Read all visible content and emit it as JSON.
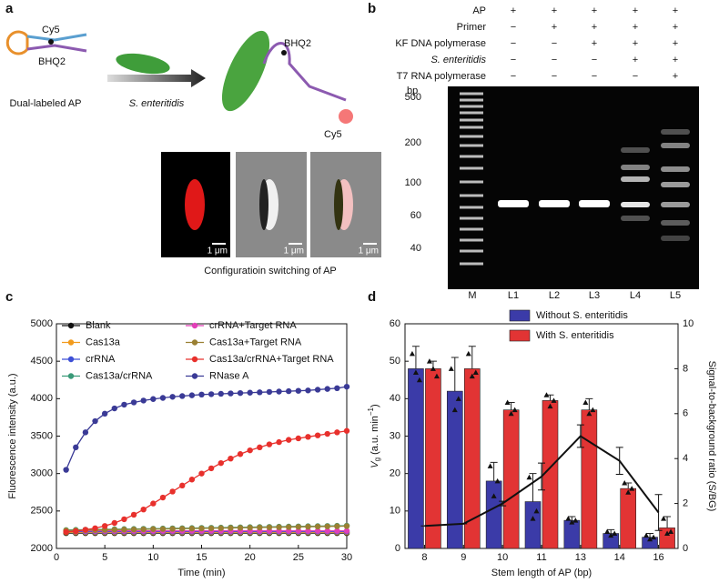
{
  "panel_a": {
    "label": "a",
    "cy5_left": "Cy5",
    "bhq2_left": "BHQ2",
    "probe_caption": "Dual-labeled AP",
    "arrow_label": "S. enteritidis",
    "bhq2_right": "BHQ2",
    "cy5_right": "Cy5",
    "scale_bars": [
      "1 μm",
      "1 μm",
      "1 μm"
    ],
    "caption": "Configuratioin switching of AP"
  },
  "panel_b": {
    "label": "b",
    "rows": [
      {
        "label": "AP",
        "signs": [
          "+",
          "+",
          "+",
          "+",
          "+"
        ]
      },
      {
        "label": "Primer",
        "signs": [
          "−",
          "+",
          "+",
          "+",
          "+"
        ]
      },
      {
        "label": "KF DNA polymerase",
        "signs": [
          "−",
          "−",
          "+",
          "+",
          "+"
        ]
      },
      {
        "label": "S. enteritidis",
        "signs": [
          "−",
          "−",
          "−",
          "+",
          "+"
        ]
      },
      {
        "label": "T7 RNA polymerase",
        "signs": [
          "−",
          "−",
          "−",
          "−",
          "+"
        ]
      }
    ],
    "unit": "bp",
    "ladder": [
      500,
      200,
      100,
      60,
      40
    ],
    "lanes": [
      "M",
      "L1",
      "L2",
      "L3",
      "L4",
      "L5"
    ]
  },
  "chart_data": [
    {
      "type": "line",
      "panel_label": "c",
      "xlabel": "Time (min)",
      "ylabel": "Fluorescence intensity (a.u.)",
      "x": [
        1,
        2,
        3,
        4,
        5,
        6,
        7,
        8,
        9,
        10,
        11,
        12,
        13,
        14,
        15,
        16,
        17,
        18,
        19,
        20,
        21,
        22,
        23,
        24,
        25,
        26,
        27,
        28,
        29,
        30
      ],
      "xlim": [
        0,
        30
      ],
      "xticks": [
        0,
        5,
        10,
        15,
        20,
        25,
        30
      ],
      "ylim": [
        2000,
        5000
      ],
      "yticks": [
        2000,
        2500,
        3000,
        3500,
        4000,
        4500,
        5000
      ],
      "series": [
        {
          "name": "Blank",
          "color": "#111111",
          "values": [
            2205,
            2205,
            2205,
            2205,
            2205,
            2205,
            2205,
            2205,
            2205,
            2205,
            2205,
            2205,
            2205,
            2205,
            2205,
            2205,
            2205,
            2205,
            2205,
            2205,
            2205,
            2205,
            2205,
            2205,
            2205,
            2205,
            2205,
            2205,
            2205,
            2205
          ]
        },
        {
          "name": "Cas13a",
          "color": "#f29b1d",
          "values": [
            2215,
            2215,
            2215,
            2215,
            2215,
            2215,
            2215,
            2215,
            2215,
            2215,
            2215,
            2215,
            2215,
            2215,
            2215,
            2215,
            2215,
            2215,
            2215,
            2215,
            2215,
            2215,
            2215,
            2215,
            2215,
            2215,
            2215,
            2215,
            2215,
            2215
          ]
        },
        {
          "name": "crRNA",
          "color": "#3d4fd6",
          "values": [
            2225,
            2225,
            2225,
            2225,
            2225,
            2225,
            2225,
            2225,
            2225,
            2225,
            2225,
            2225,
            2225,
            2225,
            2225,
            2225,
            2225,
            2225,
            2225,
            2225,
            2225,
            2225,
            2225,
            2225,
            2225,
            2225,
            2225,
            2225,
            2225,
            2225
          ]
        },
        {
          "name": "Cas13a/crRNA",
          "color": "#3a9a78",
          "values": [
            2245,
            2248,
            2250,
            2252,
            2254,
            2256,
            2258,
            2260,
            2262,
            2264,
            2266,
            2268,
            2270,
            2272,
            2274,
            2276,
            2278,
            2280,
            2282,
            2284,
            2286,
            2288,
            2290,
            2292,
            2294,
            2296,
            2298,
            2300,
            2302,
            2304
          ]
        },
        {
          "name": "crRNA+Target RNA",
          "color": "#e23fb8",
          "values": [
            2235,
            2235,
            2235,
            2235,
            2235,
            2235,
            2235,
            2235,
            2235,
            2235,
            2235,
            2235,
            2235,
            2235,
            2235,
            2235,
            2235,
            2235,
            2235,
            2235,
            2235,
            2235,
            2235,
            2235,
            2235,
            2235,
            2235,
            2235,
            2235,
            2235
          ]
        },
        {
          "name": "Cas13a+Target RNA",
          "color": "#9a8033",
          "values": [
            2240,
            2242,
            2244,
            2246,
            2248,
            2250,
            2252,
            2254,
            2256,
            2258,
            2260,
            2262,
            2264,
            2266,
            2268,
            2270,
            2272,
            2274,
            2276,
            2278,
            2280,
            2282,
            2284,
            2286,
            2288,
            2290,
            2292,
            2294,
            2296,
            2298
          ]
        },
        {
          "name": "Cas13a/crRNA+Target RNA",
          "color": "#e8302c",
          "values": [
            2220,
            2230,
            2250,
            2270,
            2300,
            2340,
            2390,
            2450,
            2520,
            2600,
            2680,
            2760,
            2840,
            2920,
            3000,
            3070,
            3140,
            3200,
            3260,
            3310,
            3350,
            3390,
            3420,
            3450,
            3470,
            3490,
            3510,
            3530,
            3550,
            3570
          ]
        },
        {
          "name": "RNase A",
          "color": "#3a3a96",
          "values": [
            3050,
            3350,
            3550,
            3700,
            3800,
            3870,
            3920,
            3950,
            3975,
            3995,
            4010,
            4025,
            4035,
            4045,
            4055,
            4060,
            4065,
            4070,
            4075,
            4080,
            4085,
            4090,
            4095,
            4100,
            4105,
            4110,
            4120,
            4130,
            4140,
            4160
          ]
        }
      ]
    },
    {
      "type": "bar",
      "panel_label": "d",
      "xlabel": "Stem length of AP (bp)",
      "ylabel_parts": [
        "V",
        "g",
        "(a.u. min",
        "−1",
        ")"
      ],
      "y2label": "Signal-to-background ratio (S/BG)",
      "categories": [
        "8",
        "9",
        "10",
        "11",
        "13",
        "14",
        "16"
      ],
      "ylim": [
        0,
        60
      ],
      "yticks": [
        0,
        10,
        20,
        30,
        40,
        50,
        60
      ],
      "y2lim": [
        0,
        10
      ],
      "y2ticks": [
        0,
        2,
        4,
        6,
        8,
        10
      ],
      "series": [
        {
          "name": "Without S. enteritidis",
          "color": "#3b3ba8",
          "values": [
            48,
            42,
            18,
            12.5,
            7.5,
            4,
            3
          ],
          "errors": [
            6,
            9,
            5,
            7.5,
            1,
            1,
            1
          ],
          "points": [
            [
              52,
              47,
              45
            ],
            [
              48,
              37,
              40
            ],
            [
              22,
              14,
              18
            ],
            [
              19,
              8,
              10
            ],
            [
              8,
              7,
              7.5
            ],
            [
              4.5,
              3.5,
              4
            ],
            [
              3.5,
              2.5,
              3
            ]
          ]
        },
        {
          "name": "With S. enteritidis",
          "color": "#e23434",
          "values": [
            48,
            48,
            37,
            39.5,
            37,
            16,
            5.5
          ],
          "errors": [
            2,
            6,
            2,
            1.5,
            3,
            1.5,
            3
          ],
          "points": [
            [
              50,
              48,
              46
            ],
            [
              52,
              46,
              47
            ],
            [
              39,
              36,
              37
            ],
            [
              41,
              38,
              39.5
            ],
            [
              39,
              36,
              37
            ],
            [
              17.5,
              15,
              16
            ],
            [
              8,
              4,
              4.5
            ]
          ]
        },
        {
          "axis": "y2",
          "color": "#111111",
          "values": [
            1.0,
            1.1,
            2.0,
            3.2,
            5.0,
            3.9,
            1.6
          ],
          "errors": [
            0,
            0,
            0.1,
            0.6,
            0.5,
            0.6,
            0.8
          ]
        }
      ]
    }
  ]
}
